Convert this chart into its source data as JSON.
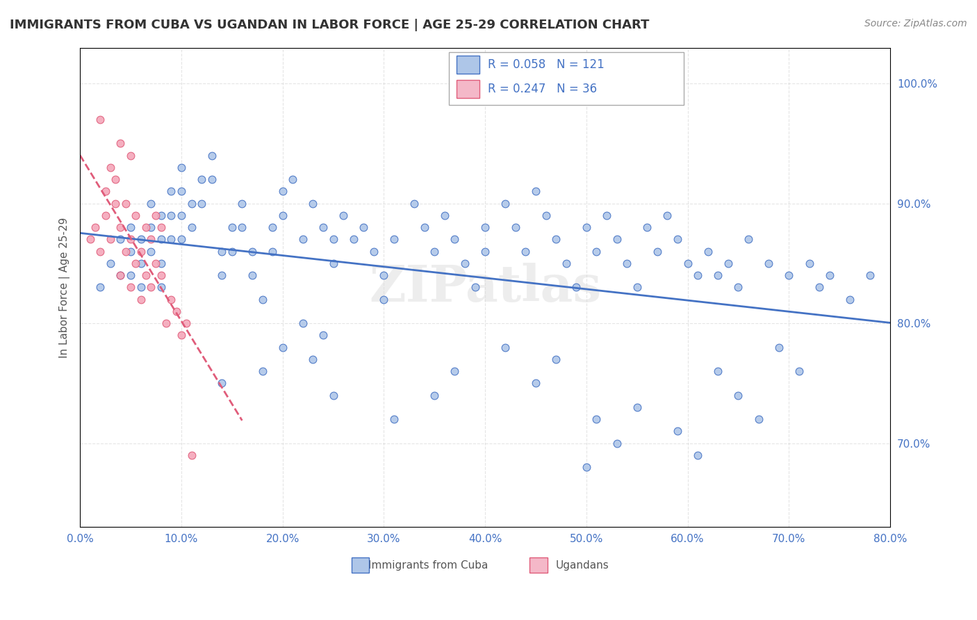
{
  "title": "IMMIGRANTS FROM CUBA VS UGANDAN IN LABOR FORCE | AGE 25-29 CORRELATION CHART",
  "source_text": "Source: ZipAtlas.com",
  "xlabel": "",
  "ylabel": "In Labor Force | Age 25-29",
  "x_min": 0.0,
  "x_max": 0.8,
  "y_min": 0.63,
  "y_max": 1.03,
  "x_tick_labels": [
    "0.0%",
    "10.0%",
    "20.0%",
    "30.0%",
    "40.0%",
    "50.0%",
    "60.0%",
    "70.0%",
    "80.0%"
  ],
  "y_tick_labels": [
    "70.0%",
    "80.0%",
    "90.0%",
    "100.0%"
  ],
  "cuba_R": 0.058,
  "cuba_N": 121,
  "uganda_R": 0.247,
  "uganda_N": 36,
  "cuba_color": "#aec6e8",
  "cuba_line_color": "#4472c4",
  "uganda_color": "#f4a7b9",
  "uganda_line_color": "#e05c7a",
  "legend_box_color_cuba": "#aec6e8",
  "legend_box_color_uganda": "#f4b8c8",
  "watermark_text": "ZIPatlas",
  "watermark_color": "#cccccc",
  "background_color": "#ffffff",
  "cuba_scatter_x": [
    0.02,
    0.03,
    0.04,
    0.04,
    0.05,
    0.05,
    0.05,
    0.06,
    0.06,
    0.06,
    0.07,
    0.07,
    0.07,
    0.08,
    0.08,
    0.08,
    0.08,
    0.09,
    0.09,
    0.09,
    0.1,
    0.1,
    0.1,
    0.1,
    0.11,
    0.11,
    0.12,
    0.12,
    0.13,
    0.13,
    0.14,
    0.14,
    0.15,
    0.15,
    0.16,
    0.16,
    0.17,
    0.17,
    0.18,
    0.19,
    0.19,
    0.2,
    0.2,
    0.21,
    0.22,
    0.23,
    0.24,
    0.25,
    0.25,
    0.26,
    0.27,
    0.28,
    0.29,
    0.3,
    0.3,
    0.31,
    0.33,
    0.34,
    0.35,
    0.36,
    0.37,
    0.38,
    0.39,
    0.4,
    0.4,
    0.42,
    0.43,
    0.44,
    0.45,
    0.46,
    0.47,
    0.48,
    0.49,
    0.5,
    0.51,
    0.52,
    0.53,
    0.54,
    0.55,
    0.56,
    0.57,
    0.58,
    0.59,
    0.6,
    0.61,
    0.62,
    0.63,
    0.64,
    0.65,
    0.66,
    0.68,
    0.7,
    0.72,
    0.74,
    0.76,
    0.78,
    0.14,
    0.18,
    0.2,
    0.22,
    0.23,
    0.24,
    0.25,
    0.31,
    0.35,
    0.37,
    0.42,
    0.45,
    0.47,
    0.5,
    0.51,
    0.53,
    0.55,
    0.59,
    0.61,
    0.63,
    0.65,
    0.67,
    0.69,
    0.71,
    0.73
  ],
  "cuba_scatter_y": [
    0.83,
    0.85,
    0.87,
    0.84,
    0.88,
    0.86,
    0.84,
    0.87,
    0.85,
    0.83,
    0.9,
    0.88,
    0.86,
    0.89,
    0.87,
    0.85,
    0.83,
    0.91,
    0.89,
    0.87,
    0.93,
    0.91,
    0.89,
    0.87,
    0.9,
    0.88,
    0.92,
    0.9,
    0.94,
    0.92,
    0.86,
    0.84,
    0.88,
    0.86,
    0.9,
    0.88,
    0.86,
    0.84,
    0.82,
    0.88,
    0.86,
    0.91,
    0.89,
    0.92,
    0.87,
    0.9,
    0.88,
    0.87,
    0.85,
    0.89,
    0.87,
    0.88,
    0.86,
    0.84,
    0.82,
    0.87,
    0.9,
    0.88,
    0.86,
    0.89,
    0.87,
    0.85,
    0.83,
    0.88,
    0.86,
    0.9,
    0.88,
    0.86,
    0.91,
    0.89,
    0.87,
    0.85,
    0.83,
    0.88,
    0.86,
    0.89,
    0.87,
    0.85,
    0.83,
    0.88,
    0.86,
    0.89,
    0.87,
    0.85,
    0.84,
    0.86,
    0.84,
    0.85,
    0.83,
    0.87,
    0.85,
    0.84,
    0.85,
    0.84,
    0.82,
    0.84,
    0.75,
    0.76,
    0.78,
    0.8,
    0.77,
    0.79,
    0.74,
    0.72,
    0.74,
    0.76,
    0.78,
    0.75,
    0.77,
    0.68,
    0.72,
    0.7,
    0.73,
    0.71,
    0.69,
    0.76,
    0.74,
    0.72,
    0.78,
    0.76,
    0.83
  ],
  "uganda_scatter_x": [
    0.01,
    0.015,
    0.02,
    0.02,
    0.025,
    0.025,
    0.03,
    0.03,
    0.035,
    0.035,
    0.04,
    0.04,
    0.04,
    0.045,
    0.045,
    0.05,
    0.05,
    0.05,
    0.055,
    0.055,
    0.06,
    0.06,
    0.065,
    0.065,
    0.07,
    0.07,
    0.075,
    0.075,
    0.08,
    0.08,
    0.085,
    0.09,
    0.095,
    0.1,
    0.105,
    0.11
  ],
  "uganda_scatter_y": [
    0.87,
    0.88,
    0.86,
    0.97,
    0.89,
    0.91,
    0.87,
    0.93,
    0.9,
    0.92,
    0.84,
    0.88,
    0.95,
    0.86,
    0.9,
    0.83,
    0.87,
    0.94,
    0.85,
    0.89,
    0.82,
    0.86,
    0.84,
    0.88,
    0.83,
    0.87,
    0.85,
    0.89,
    0.84,
    0.88,
    0.8,
    0.82,
    0.81,
    0.79,
    0.8,
    0.69
  ]
}
